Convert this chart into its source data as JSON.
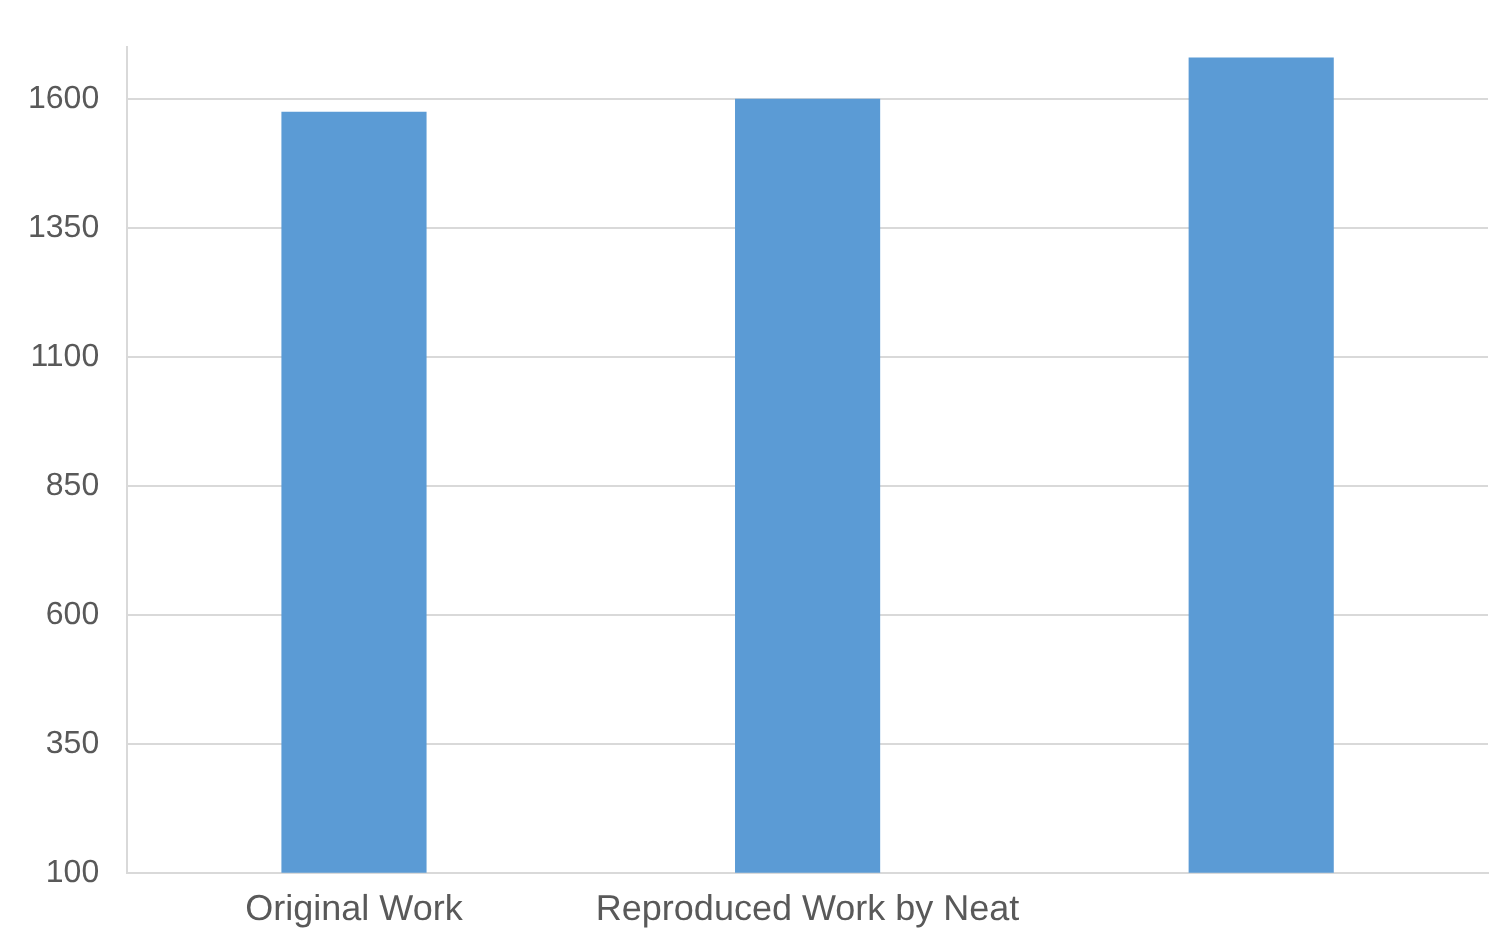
{
  "chart_data": {
    "type": "bar",
    "categories": [
      "Original Work",
      "Reproduced Work by Neat",
      null
    ],
    "values": [
      1575,
      1600,
      1680
    ],
    "color": "#5b9bd5",
    "ylim": [
      100,
      1700
    ],
    "yticks": [
      100,
      350,
      600,
      850,
      1100,
      1350,
      1600
    ],
    "grid": "y"
  }
}
